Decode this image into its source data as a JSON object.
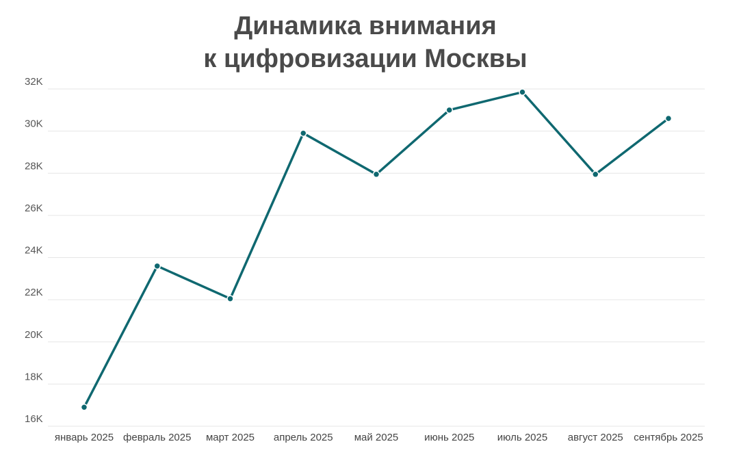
{
  "chart_data": {
    "type": "line",
    "title_lines": [
      "Динамика внимания",
      "к цифровизации Москвы"
    ],
    "categories": [
      "январь 2025",
      "февраль 2025",
      "март 2025",
      "апрель 2025",
      "май 2025",
      "июнь 2025",
      "июль 2025",
      "август 2025",
      "сентябрь 2025"
    ],
    "series": [
      {
        "values": [
          16900,
          23600,
          22050,
          29900,
          27950,
          31000,
          31850,
          27950,
          30600
        ]
      }
    ],
    "ylim": [
      16000,
      32000
    ],
    "yticks": [
      16000,
      18000,
      20000,
      22000,
      24000,
      26000,
      28000,
      30000,
      32000
    ],
    "ytick_labels": [
      "16K",
      "18K",
      "20K",
      "22K",
      "24K",
      "26K",
      "28K",
      "30K",
      "32K"
    ],
    "grid": true,
    "line_color": "#0f6870"
  }
}
